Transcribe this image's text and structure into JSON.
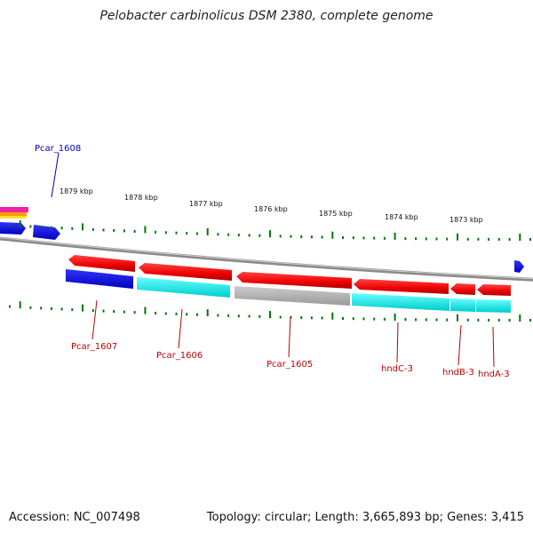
{
  "title": "Pelobacter carbinolicus DSM 2380, complete genome",
  "footer": {
    "accession": "Accession: NC_007498",
    "summary": "Topology: circular; Length: 3,665,893 bp; Genes: 3,415"
  },
  "scale_labels": [
    "1879 kbp",
    "1878 kbp",
    "1877 kbp",
    "1876 kbp",
    "1875 kbp",
    "1874 kbp",
    "1873 kbp"
  ],
  "gene_labels": {
    "pcar_1608": "Pcar_1608",
    "pcar_1607": "Pcar_1607",
    "pcar_1606": "Pcar_1606",
    "pcar_1605": "Pcar_1605",
    "hndC": "hndC-3",
    "hndB": "hndB-3",
    "hndA": "hndA-3"
  },
  "colors": {
    "cds": "#ee1111",
    "gene_blue": "#1111ee",
    "gene_cyan": "#00eeee",
    "gene_grey": "#bbbbbb",
    "ticks": "#007700",
    "backbone": "#888888",
    "label_red": "#bb0000",
    "label_blue": "#0000bb"
  }
}
